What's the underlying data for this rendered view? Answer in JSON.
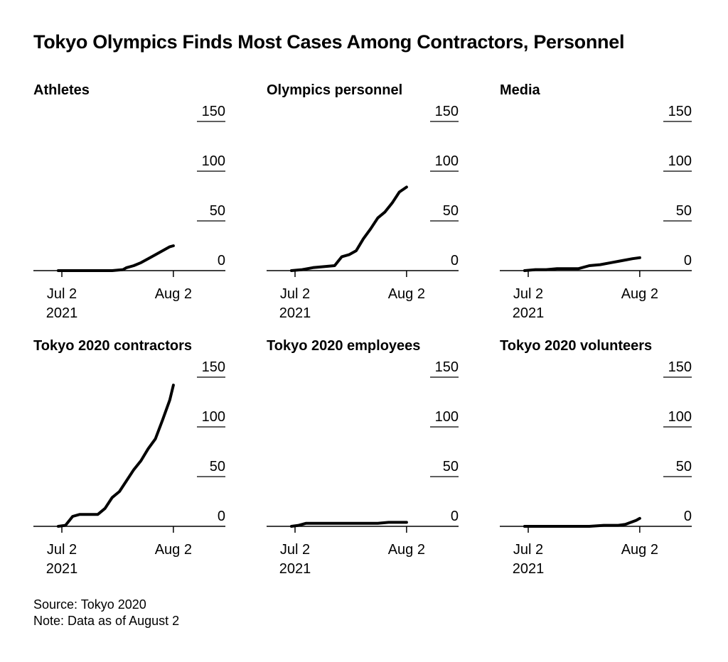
{
  "title": "Tokyo Olympics Finds Most Cases Among Contractors, Personnel",
  "source": "Source: Tokyo 2020",
  "note": "Note: Data as of August 2",
  "line_color": "#000000",
  "chart_data": [
    {
      "type": "line",
      "title": "Athletes",
      "x": [
        "Jul 1",
        "Jul 4",
        "Jul 7",
        "Jul 10",
        "Jul 13",
        "Jul 16",
        "Jul 19",
        "Jul 20",
        "Jul 22",
        "Jul 24",
        "Jul 26",
        "Jul 28",
        "Jul 30",
        "Aug 1",
        "Aug 2"
      ],
      "values": [
        0,
        0,
        0,
        0,
        0,
        0,
        1,
        3,
        5,
        8,
        12,
        16,
        20,
        24,
        25
      ],
      "ylim": [
        0,
        150
      ],
      "yticks": [
        "0",
        "50",
        "100",
        "150"
      ],
      "xticks": [
        "Jul 2",
        "Aug 2"
      ],
      "xsublabel": "2021"
    },
    {
      "type": "line",
      "title": "Olympics personnel",
      "x": [
        "Jul 1",
        "Jul 4",
        "Jul 7",
        "Jul 10",
        "Jul 13",
        "Jul 15",
        "Jul 17",
        "Jul 19",
        "Jul 21",
        "Jul 23",
        "Jul 25",
        "Jul 27",
        "Jul 29",
        "Jul 31",
        "Aug 2"
      ],
      "values": [
        0,
        1,
        3,
        4,
        5,
        14,
        16,
        20,
        32,
        42,
        53,
        59,
        68,
        79,
        84
      ],
      "ylim": [
        0,
        150
      ],
      "yticks": [
        "0",
        "50",
        "100",
        "150"
      ],
      "xticks": [
        "Jul 2",
        "Aug 2"
      ],
      "xsublabel": "2021"
    },
    {
      "type": "line",
      "title": "Media",
      "x": [
        "Jul 1",
        "Jul 4",
        "Jul 7",
        "Jul 10",
        "Jul 13",
        "Jul 16",
        "Jul 19",
        "Jul 22",
        "Jul 25",
        "Jul 28",
        "Jul 31",
        "Aug 2"
      ],
      "values": [
        0,
        1,
        1,
        2,
        2,
        2,
        5,
        6,
        8,
        10,
        12,
        13
      ],
      "ylim": [
        0,
        150
      ],
      "yticks": [
        "0",
        "50",
        "100",
        "150"
      ],
      "xticks": [
        "Jul 2",
        "Aug 2"
      ],
      "xsublabel": "2021"
    },
    {
      "type": "line",
      "title": "Tokyo 2020 contractors",
      "x": [
        "Jul 1",
        "Jul 3",
        "Jul 5",
        "Jul 7",
        "Jul 10",
        "Jul 12",
        "Jul 14",
        "Jul 16",
        "Jul 18",
        "Jul 20",
        "Jul 22",
        "Jul 24",
        "Jul 26",
        "Jul 28",
        "Jul 30",
        "Aug 1",
        "Aug 2"
      ],
      "values": [
        0,
        1,
        10,
        12,
        12,
        12,
        18,
        29,
        35,
        46,
        57,
        66,
        78,
        88,
        107,
        127,
        142
      ],
      "ylim": [
        0,
        150
      ],
      "yticks": [
        "0",
        "50",
        "100",
        "150"
      ],
      "xticks": [
        "Jul 2",
        "Aug 2"
      ],
      "xsublabel": "2021"
    },
    {
      "type": "line",
      "title": "Tokyo 2020 employees",
      "x": [
        "Jul 1",
        "Jul 3",
        "Jul 5",
        "Jul 10",
        "Jul 15",
        "Jul 20",
        "Jul 25",
        "Jul 28",
        "Aug 2"
      ],
      "values": [
        0,
        1,
        3,
        3,
        3,
        3,
        3,
        4,
        4
      ],
      "ylim": [
        0,
        150
      ],
      "yticks": [
        "0",
        "50",
        "100",
        "150"
      ],
      "xticks": [
        "Jul 2",
        "Aug 2"
      ],
      "xsublabel": "2021"
    },
    {
      "type": "line",
      "title": "Tokyo 2020 volunteers",
      "x": [
        "Jul 1",
        "Jul 7",
        "Jul 13",
        "Jul 19",
        "Jul 23",
        "Jul 27",
        "Jul 29",
        "Aug 1",
        "Aug 2"
      ],
      "values": [
        0,
        0,
        0,
        0,
        1,
        1,
        2,
        6,
        8
      ],
      "ylim": [
        0,
        150
      ],
      "yticks": [
        "0",
        "50",
        "100",
        "150"
      ],
      "xticks": [
        "Jul 2",
        "Aug 2"
      ],
      "xsublabel": "2021"
    }
  ]
}
